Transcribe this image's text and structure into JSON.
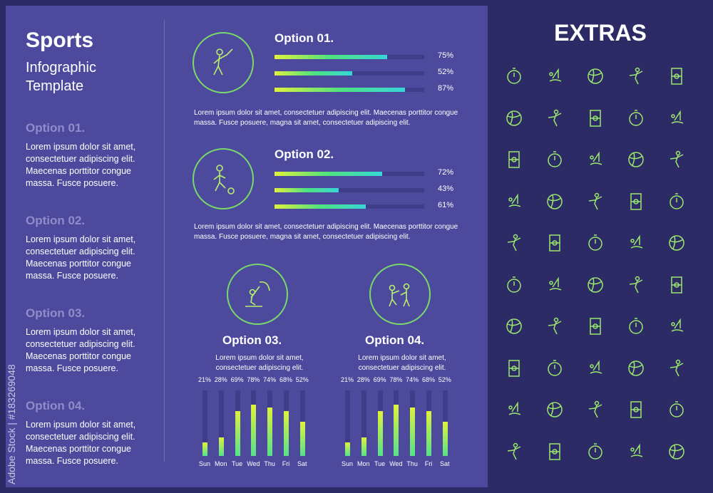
{
  "header": {
    "title": "Sports",
    "subtitle_line1": "Infographic",
    "subtitle_line2": "Template"
  },
  "left_options": [
    {
      "title": "Option 01.",
      "body": "Lorem ipsum dolor sit amet, consectetuer adipiscing elit. Maecenas porttitor congue massa. Fusce posuere."
    },
    {
      "title": "Option 02.",
      "body": "Lorem ipsum dolor sit amet, consectetuer adipiscing elit. Maecenas porttitor congue massa. Fusce posuere."
    },
    {
      "title": "Option 03.",
      "body": "Lorem ipsum dolor sit amet, consectetuer adipiscing elit. Maecenas porttitor congue massa. Fusce posuere."
    },
    {
      "title": "Option 04.",
      "body": "Lorem ipsum dolor sit amet, consectetuer adipiscing elit. Maecenas porttitor congue massa. Fusce posuere."
    }
  ],
  "option1": {
    "title": "Option 01.",
    "values": [
      75,
      52,
      87
    ],
    "labels": [
      "75%",
      "52%",
      "87%"
    ],
    "icon": "fencer-icon",
    "text": "Lorem ipsum dolor sit amet, consectetuer adipiscing elit. Maecenas porttitor congue massa. Fusce posuere, magna sit amet, consectetuer adipiscing elit."
  },
  "option2": {
    "title": "Option 02.",
    "values": [
      72,
      43,
      61
    ],
    "labels": [
      "72%",
      "43%",
      "61%"
    ],
    "icon": "soccer-player-icon",
    "text": "Lorem ipsum dolor sit amet, consectetuer adipiscing elit. Maecenas porttitor congue massa. Fusce posuere, magna sit amet, consectetuer adipiscing elit."
  },
  "option3": {
    "title": "Option 03.",
    "icon": "kitesurfer-icon",
    "text_line1": "Lorem ipsum dolor sit amet,",
    "text_line2": "consectetuer adipiscing elit."
  },
  "option4": {
    "title": "Option 04.",
    "icon": "martial-arts-icon",
    "text_line1": "Lorem ipsum dolor sit amet,",
    "text_line2": "consectetuer adipiscing elit."
  },
  "chart_data": [
    {
      "type": "bar",
      "categories": [
        "Sun",
        "Mon",
        "Tue",
        "Wed",
        "Thu",
        "Fri",
        "Sat"
      ],
      "values": [
        21,
        28,
        69,
        78,
        74,
        68,
        52
      ],
      "value_labels": [
        "21%",
        "28%",
        "69%",
        "78%",
        "74%",
        "68%",
        "52%"
      ]
    },
    {
      "type": "bar",
      "categories": [
        "Sun",
        "Mon",
        "Tue",
        "Wed",
        "Thu",
        "Fri",
        "Sat"
      ],
      "values": [
        21,
        28,
        69,
        78,
        74,
        68,
        52
      ],
      "value_labels": [
        "21%",
        "28%",
        "69%",
        "78%",
        "74%",
        "68%",
        "52%"
      ]
    }
  ],
  "extras": {
    "title": "EXTRAS",
    "icons": [
      "stopwatch-icon",
      "volleyball-icon",
      "soccer-field-icon",
      "windsurfing-icon",
      "gymnast-icon",
      "exercise-bike-icon",
      "tennis-racket-icon",
      "goal-net-icon",
      "swimming-pool-icon",
      "cheerleader-icon",
      "skateboarder-icon",
      "tennis-ball-icon",
      "climber-icon",
      "ping-pong-icon",
      "dancer-icon",
      "bicycle-icon",
      "fencer-icon",
      "podium-icon",
      "surfer-icon",
      "runner-icon",
      "cyclist-icon",
      "basketball-icon",
      "billiard-ball-icon",
      "swimmer-icon",
      "soccer-player-icon",
      "bike-icon",
      "soccer-ball-icon",
      "checkered-flag-icon",
      "surfboard-icon",
      "karate-icon",
      "atv-icon",
      "rugby-goal-icon",
      "table-tennis-icon",
      "swimming-icon",
      "golfer-icon",
      "roller-skate-icon",
      "field-icon",
      "golf-club-icon",
      "basketball-hoop-icon",
      "pull-up-bar-icon",
      "bmx-icon",
      "trophy-icon",
      "archery-target-icon",
      "kitesurfing-icon",
      "muscle-icon",
      "clipboard-health-icon",
      "american-football-icon",
      "hoop-icon",
      "kayak-icon",
      "rowing-icon"
    ]
  },
  "watermark": "Adobe Stock | #183269048",
  "colors": {
    "panel": "#4d4a9e",
    "background": "#2c2b66",
    "accent_start": "#e0f23a",
    "accent_end": "#36d6d8",
    "track": "#3f3c8a"
  }
}
